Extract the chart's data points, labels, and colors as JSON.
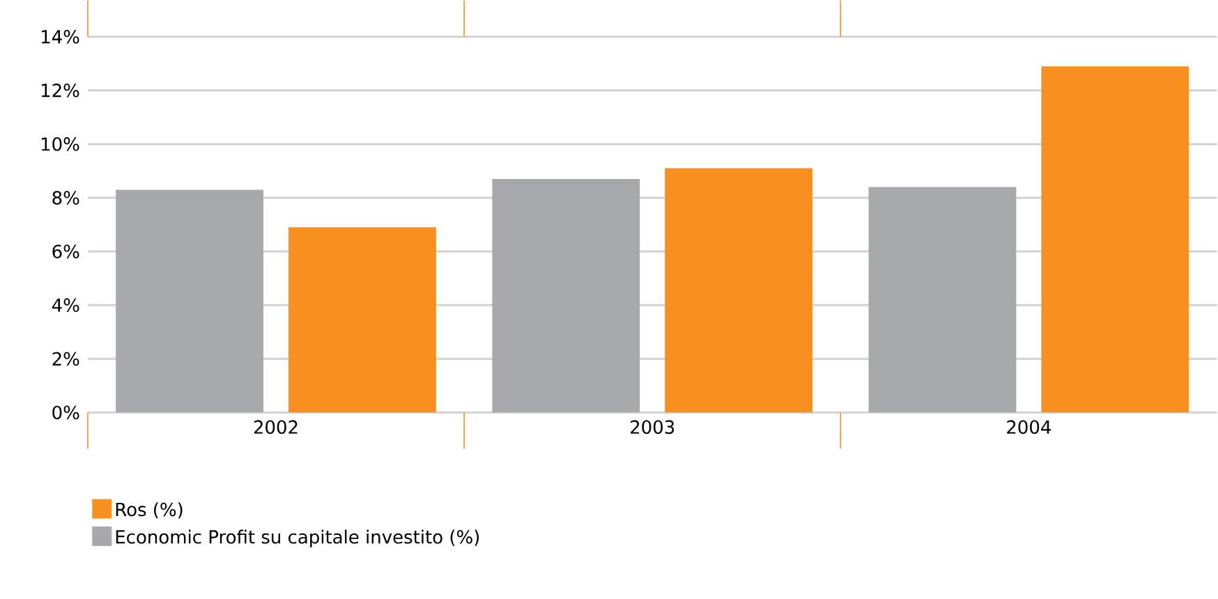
{
  "chart_data": {
    "type": "bar",
    "categories": [
      "2002",
      "2003",
      "2004"
    ],
    "series": [
      {
        "name": "Economic Profit su capitale investito (%)",
        "color": "#a7a8ac",
        "values": [
          8.3,
          8.7,
          8.4
        ]
      },
      {
        "name": "Ros (%)",
        "color": "#f7901e",
        "values": [
          6.9,
          9.1,
          12.9
        ]
      }
    ],
    "ylim": [
      0,
      14
    ],
    "yticks": [
      {
        "value": 0,
        "label": "0%"
      },
      {
        "value": 2,
        "label": "2%"
      },
      {
        "value": 4,
        "label": "4%"
      },
      {
        "value": 6,
        "label": "6%"
      },
      {
        "value": 8,
        "label": "8%"
      },
      {
        "value": 10,
        "label": "10%"
      },
      {
        "value": 12,
        "label": "12%"
      },
      {
        "value": 14,
        "label": "14%"
      }
    ],
    "grid": "y",
    "legend": "bottom left"
  }
}
